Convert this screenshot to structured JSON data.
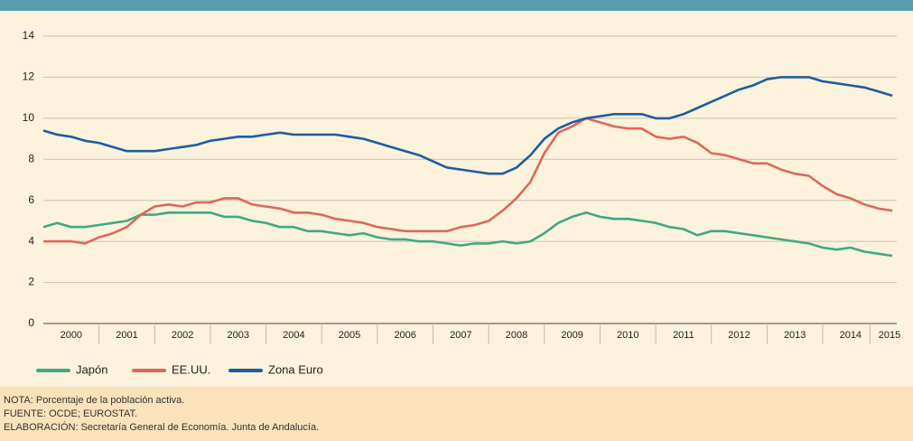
{
  "chart_data": {
    "type": "line",
    "x": [
      2000,
      2000.25,
      2000.5,
      2000.75,
      2001,
      2001.25,
      2001.5,
      2001.75,
      2002,
      2002.25,
      2002.5,
      2002.75,
      2003,
      2003.25,
      2003.5,
      2003.75,
      2004,
      2004.25,
      2004.5,
      2004.75,
      2005,
      2005.25,
      2005.5,
      2005.75,
      2006,
      2006.25,
      2006.5,
      2006.75,
      2007,
      2007.25,
      2007.5,
      2007.75,
      2008,
      2008.25,
      2008.5,
      2008.75,
      2009,
      2009.25,
      2009.5,
      2009.75,
      2010,
      2010.25,
      2010.5,
      2010.75,
      2011,
      2011.25,
      2011.5,
      2011.75,
      2012,
      2012.25,
      2012.5,
      2012.75,
      2013,
      2013.25,
      2013.5,
      2013.75,
      2014,
      2014.25,
      2014.5,
      2014.75,
      2015,
      2015.25
    ],
    "series": [
      {
        "name": "Japón",
        "color": "#3eaa85",
        "values": [
          4.7,
          4.9,
          4.7,
          4.7,
          4.8,
          4.9,
          5.0,
          5.3,
          5.3,
          5.4,
          5.4,
          5.4,
          5.4,
          5.2,
          5.2,
          5.0,
          4.9,
          4.7,
          4.7,
          4.5,
          4.5,
          4.4,
          4.3,
          4.4,
          4.2,
          4.1,
          4.1,
          4.0,
          4.0,
          3.9,
          3.8,
          3.9,
          3.9,
          4.0,
          3.9,
          4.0,
          4.4,
          4.9,
          5.2,
          5.4,
          5.2,
          5.1,
          5.1,
          5.0,
          4.9,
          4.7,
          4.6,
          4.3,
          4.5,
          4.5,
          4.4,
          4.3,
          4.2,
          4.1,
          4.0,
          3.9,
          3.7,
          3.6,
          3.7,
          3.5,
          3.4,
          3.3
        ]
      },
      {
        "name": "EE.UU.",
        "color": "#e0675a",
        "values": [
          4.0,
          4.0,
          4.0,
          3.9,
          4.2,
          4.4,
          4.7,
          5.3,
          5.7,
          5.8,
          5.7,
          5.9,
          5.9,
          6.1,
          6.1,
          5.8,
          5.7,
          5.6,
          5.4,
          5.4,
          5.3,
          5.1,
          5.0,
          4.9,
          4.7,
          4.6,
          4.5,
          4.5,
          4.5,
          4.5,
          4.7,
          4.8,
          5.0,
          5.5,
          6.1,
          6.9,
          8.3,
          9.3,
          9.6,
          10.0,
          9.8,
          9.6,
          9.5,
          9.5,
          9.1,
          9.0,
          9.1,
          8.8,
          8.3,
          8.2,
          8.0,
          7.8,
          7.8,
          7.5,
          7.3,
          7.2,
          6.7,
          6.3,
          6.1,
          5.8,
          5.6,
          5.5
        ]
      },
      {
        "name": "Zona Euro",
        "color": "#1b5ea6",
        "values": [
          9.4,
          9.2,
          9.1,
          8.9,
          8.8,
          8.6,
          8.4,
          8.4,
          8.4,
          8.5,
          8.6,
          8.7,
          8.9,
          9.0,
          9.1,
          9.1,
          9.2,
          9.3,
          9.2,
          9.2,
          9.2,
          9.2,
          9.1,
          9.0,
          8.8,
          8.6,
          8.4,
          8.2,
          7.9,
          7.6,
          7.5,
          7.4,
          7.3,
          7.3,
          7.6,
          8.2,
          9.0,
          9.5,
          9.8,
          10.0,
          10.1,
          10.2,
          10.2,
          10.2,
          10.0,
          10.0,
          10.2,
          10.5,
          10.8,
          11.1,
          11.4,
          11.6,
          11.9,
          12.0,
          12.0,
          12.0,
          11.8,
          11.7,
          11.6,
          11.5,
          11.3,
          11.1
        ]
      }
    ],
    "xlim": [
      2000,
      2015.33
    ],
    "xticks": [
      {
        "value": 2000.5,
        "label": "2000"
      },
      {
        "value": 2001.5,
        "label": "2001"
      },
      {
        "value": 2002.5,
        "label": "2002"
      },
      {
        "value": 2003.5,
        "label": "2003"
      },
      {
        "value": 2004.5,
        "label": "2004"
      },
      {
        "value": 2005.5,
        "label": "2005"
      },
      {
        "value": 2006.5,
        "label": "2006"
      },
      {
        "value": 2007.5,
        "label": "2007"
      },
      {
        "value": 2008.5,
        "label": "2008"
      },
      {
        "value": 2009.5,
        "label": "2009"
      },
      {
        "value": 2010.5,
        "label": "2010"
      },
      {
        "value": 2011.5,
        "label": "2011"
      },
      {
        "value": 2012.5,
        "label": "2012"
      },
      {
        "value": 2013.5,
        "label": "2013"
      },
      {
        "value": 2014.5,
        "label": "2014"
      },
      {
        "value": 2015.2,
        "label": "2015"
      }
    ],
    "ylim": [
      0,
      14
    ],
    "yticks": [
      0,
      2,
      4,
      6,
      8,
      10,
      12,
      14
    ],
    "grid": true,
    "legend": "bottom-left",
    "notes": [
      "NOTA: Porcentaje de la población activa.",
      "FUENTE: OCDE; EUROSTAT.",
      "ELABORACIÓN: Secretaría General de Economía. Junta de Andalucía."
    ]
  }
}
